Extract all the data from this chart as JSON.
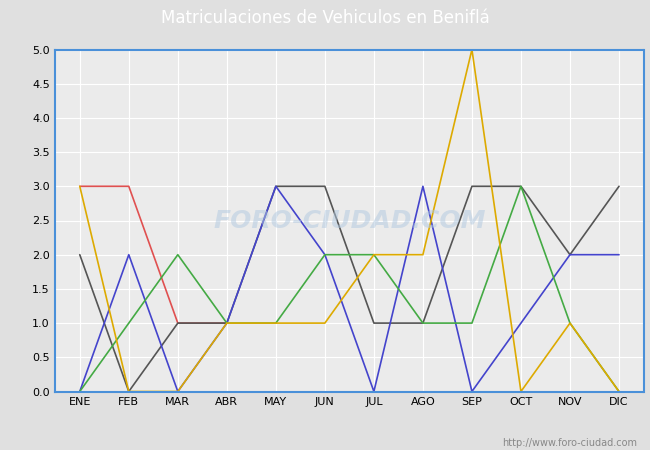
{
  "title": "Matriculaciones de Vehiculos en Beniflá",
  "months": [
    "ENE",
    "FEB",
    "MAR",
    "ABR",
    "MAY",
    "JUN",
    "JUL",
    "AGO",
    "SEP",
    "OCT",
    "NOV",
    "DIC"
  ],
  "series": {
    "2024": {
      "color": "#e05050",
      "data": [
        3,
        3,
        1,
        1,
        null,
        null,
        null,
        null,
        null,
        null,
        null,
        null
      ]
    },
    "2023": {
      "color": "#555555",
      "data": [
        2,
        0,
        1,
        1,
        3,
        3,
        1,
        1,
        3,
        3,
        2,
        3
      ]
    },
    "2022": {
      "color": "#4444cc",
      "data": [
        0,
        2,
        0,
        1,
        3,
        2,
        0,
        3,
        0,
        1,
        2,
        2
      ]
    },
    "2021": {
      "color": "#44aa44",
      "data": [
        0,
        1,
        2,
        1,
        1,
        2,
        2,
        1,
        1,
        3,
        1,
        0
      ]
    },
    "2020": {
      "color": "#ddaa00",
      "data": [
        3,
        0,
        0,
        1,
        1,
        1,
        2,
        2,
        5,
        0,
        1,
        0
      ]
    }
  },
  "ylim": [
    0,
    5.0
  ],
  "yticks": [
    0.0,
    0.5,
    1.0,
    1.5,
    2.0,
    2.5,
    3.0,
    3.5,
    4.0,
    4.5,
    5.0
  ],
  "background_color": "#e0e0e0",
  "plot_background": "#ebebeb",
  "title_bg": "#4a90d9",
  "title_color": "white",
  "border_color": "#4a90d9",
  "grid_color": "white",
  "watermark_text": "FORO-CIUDAD.COM",
  "watermark_url": "http://www.foro-ciudad.com"
}
